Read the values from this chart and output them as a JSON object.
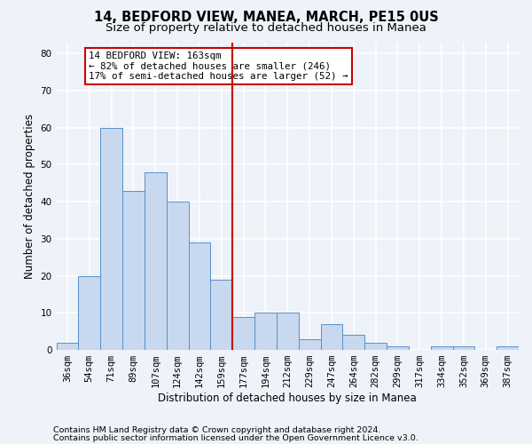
{
  "title": "14, BEDFORD VIEW, MANEA, MARCH, PE15 0US",
  "subtitle": "Size of property relative to detached houses in Manea",
  "xlabel": "Distribution of detached houses by size in Manea",
  "ylabel": "Number of detached properties",
  "categories": [
    "36sqm",
    "54sqm",
    "71sqm",
    "89sqm",
    "107sqm",
    "124sqm",
    "142sqm",
    "159sqm",
    "177sqm",
    "194sqm",
    "212sqm",
    "229sqm",
    "247sqm",
    "264sqm",
    "282sqm",
    "299sqm",
    "317sqm",
    "334sqm",
    "352sqm",
    "369sqm",
    "387sqm"
  ],
  "values": [
    2,
    20,
    60,
    43,
    48,
    40,
    29,
    19,
    9,
    10,
    10,
    3,
    7,
    4,
    2,
    1,
    0,
    1,
    1,
    0,
    1
  ],
  "bar_color": "#c8d8ee",
  "bar_edge_color": "#5b8fc9",
  "vline_x": 7.5,
  "vline_color": "#cc0000",
  "annotation_text": "14 BEDFORD VIEW: 163sqm\n← 82% of detached houses are smaller (246)\n17% of semi-detached houses are larger (52) →",
  "annotation_box_color": "#ffffff",
  "annotation_box_edge": "#cc0000",
  "ylim": [
    0,
    83
  ],
  "yticks": [
    0,
    10,
    20,
    30,
    40,
    50,
    60,
    70,
    80
  ],
  "footnote1": "Contains HM Land Registry data © Crown copyright and database right 2024.",
  "footnote2": "Contains public sector information licensed under the Open Government Licence v3.0.",
  "background_color": "#eef2f9",
  "plot_bg_color": "#eef2f9",
  "grid_color": "#ffffff",
  "title_fontsize": 10.5,
  "subtitle_fontsize": 9.5,
  "ylabel_fontsize": 8.5,
  "xlabel_fontsize": 8.5,
  "tick_fontsize": 7.5,
  "footnote_fontsize": 6.8,
  "ann_fontsize": 7.8
}
